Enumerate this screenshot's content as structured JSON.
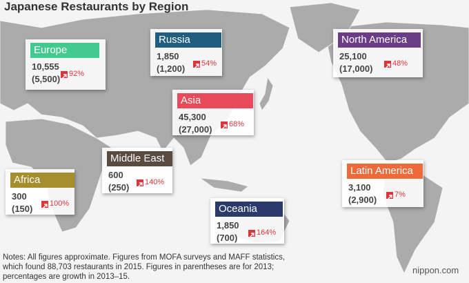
{
  "title": "Japanese Restaurants by Region",
  "regions": [
    {
      "name": "Europe",
      "color": "#44c98f",
      "current": "10,555",
      "previous": "(5,500)",
      "growth": "92%"
    },
    {
      "name": "Russia",
      "color": "#1f5e7e",
      "current": "1,850",
      "previous": "(1,200)",
      "growth": "54%"
    },
    {
      "name": "North America",
      "color": "#6a3d86",
      "current": "25,100",
      "previous": "(17,000)",
      "growth": "48%"
    },
    {
      "name": "Asia",
      "color": "#e84a59",
      "current": "45,300",
      "previous": "(27,000)",
      "growth": "68%"
    },
    {
      "name": "Middle East",
      "color": "#5a4a40",
      "current": "600",
      "previous": "(250)",
      "growth": "140%"
    },
    {
      "name": "Africa",
      "color": "#a68d2e",
      "current": "300",
      "previous": "(150)",
      "growth": "100%"
    },
    {
      "name": "Latin America",
      "color": "#ee6a3b",
      "current": "3,100",
      "previous": "(2,900)",
      "growth": "7%"
    },
    {
      "name": "Oceania",
      "color": "#2a3a6a",
      "current": "1,850",
      "previous": "(700)",
      "growth": "164%"
    }
  ],
  "notes": [
    "Notes: All figures approximate. Figures from MOFA surveys and MAFF statistics,",
    "which found 88,703 restaurants in 2015. Figures in parentheses are for 2013;",
    "percentages are growth in 2013–15."
  ],
  "logo": "nippon.com"
}
